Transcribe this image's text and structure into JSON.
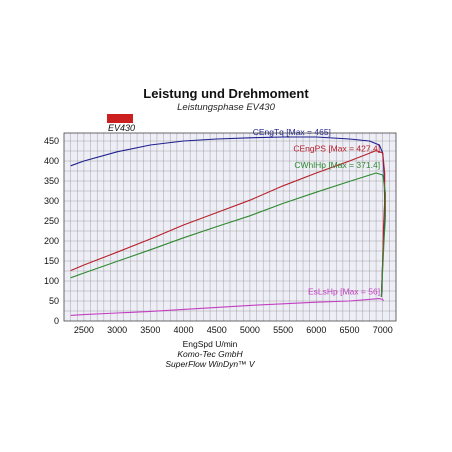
{
  "chart_data": {
    "type": "line",
    "title": "Leistung und Drehmoment",
    "subtitle": "Leistungsphase EV430",
    "badge": {
      "label": "EV430",
      "color": "#cc1f1f"
    },
    "xlabel": "EngSpd U/min",
    "footer_lines": [
      "Komo-Tec GmbH",
      "SuperFlow WinDyn™ V"
    ],
    "xlim": [
      2200,
      7200
    ],
    "ylim": [
      0,
      470
    ],
    "x_ticks": [
      2500,
      3000,
      3500,
      4000,
      4500,
      5000,
      5500,
      6000,
      6500,
      7000
    ],
    "y_ticks": [
      0,
      50,
      100,
      150,
      200,
      250,
      300,
      350,
      400,
      450
    ],
    "x_tick_labels": [
      "2500",
      "3000",
      "3500",
      "4000",
      "4500",
      "5000",
      "5500",
      "6000",
      "6500",
      "7000"
    ],
    "y_tick_labels": [
      "0",
      "50",
      "100",
      "150",
      "200",
      "250",
      "300",
      "350",
      "400",
      "450"
    ],
    "grid": true,
    "plot_background": "#eeeef7",
    "series": [
      {
        "name": "CEngTq",
        "label": "CEngTq [Max = 465]",
        "color": "#1f1f8f",
        "points": [
          [
            2300,
            388
          ],
          [
            2500,
            400
          ],
          [
            3000,
            423
          ],
          [
            3500,
            440
          ],
          [
            4000,
            450
          ],
          [
            4500,
            455
          ],
          [
            5000,
            458
          ],
          [
            5500,
            460
          ],
          [
            6000,
            460
          ],
          [
            6500,
            455
          ],
          [
            6800,
            450
          ],
          [
            6950,
            440
          ],
          [
            7000,
            420
          ],
          [
            7020,
            370
          ],
          [
            7030,
            300
          ],
          [
            7020,
            230
          ],
          [
            7000,
            150
          ],
          [
            6980,
            60
          ]
        ]
      },
      {
        "name": "CEngPS",
        "label": "CEngPS [Max = 427.4]",
        "color": "#b8202a",
        "points": [
          [
            2300,
            126
          ],
          [
            2500,
            140
          ],
          [
            3000,
            172
          ],
          [
            3500,
            205
          ],
          [
            4000,
            240
          ],
          [
            4500,
            271
          ],
          [
            5000,
            302
          ],
          [
            5500,
            338
          ],
          [
            6000,
            370
          ],
          [
            6500,
            400
          ],
          [
            6900,
            426
          ],
          [
            7000,
            420
          ],
          [
            7030,
            370
          ],
          [
            7030,
            300
          ],
          [
            7010,
            230
          ],
          [
            7000,
            150
          ],
          [
            6980,
            60
          ]
        ]
      },
      {
        "name": "CWhlHp",
        "label": "CWhlHp [Max = 371.4]",
        "color": "#2f8a2f",
        "points": [
          [
            2300,
            108
          ],
          [
            2500,
            120
          ],
          [
            3000,
            149
          ],
          [
            3500,
            178
          ],
          [
            4000,
            208
          ],
          [
            4500,
            236
          ],
          [
            5000,
            263
          ],
          [
            5500,
            294
          ],
          [
            6000,
            322
          ],
          [
            6500,
            349
          ],
          [
            6900,
            370
          ],
          [
            7000,
            365
          ],
          [
            7040,
            320
          ],
          [
            7040,
            260
          ],
          [
            7020,
            200
          ],
          [
            7000,
            130
          ],
          [
            6980,
            60
          ]
        ]
      },
      {
        "name": "EsLsHp",
        "label": "EsLsHp [Max = 56]",
        "color": "#c23fc2",
        "points": [
          [
            2300,
            14
          ],
          [
            2500,
            16
          ],
          [
            3000,
            20
          ],
          [
            3500,
            24
          ],
          [
            4000,
            29
          ],
          [
            4500,
            34
          ],
          [
            5000,
            39
          ],
          [
            5500,
            43
          ],
          [
            6000,
            47
          ],
          [
            6500,
            50
          ],
          [
            6950,
            56
          ],
          [
            7000,
            54
          ],
          [
            7010,
            50
          ]
        ]
      }
    ]
  }
}
